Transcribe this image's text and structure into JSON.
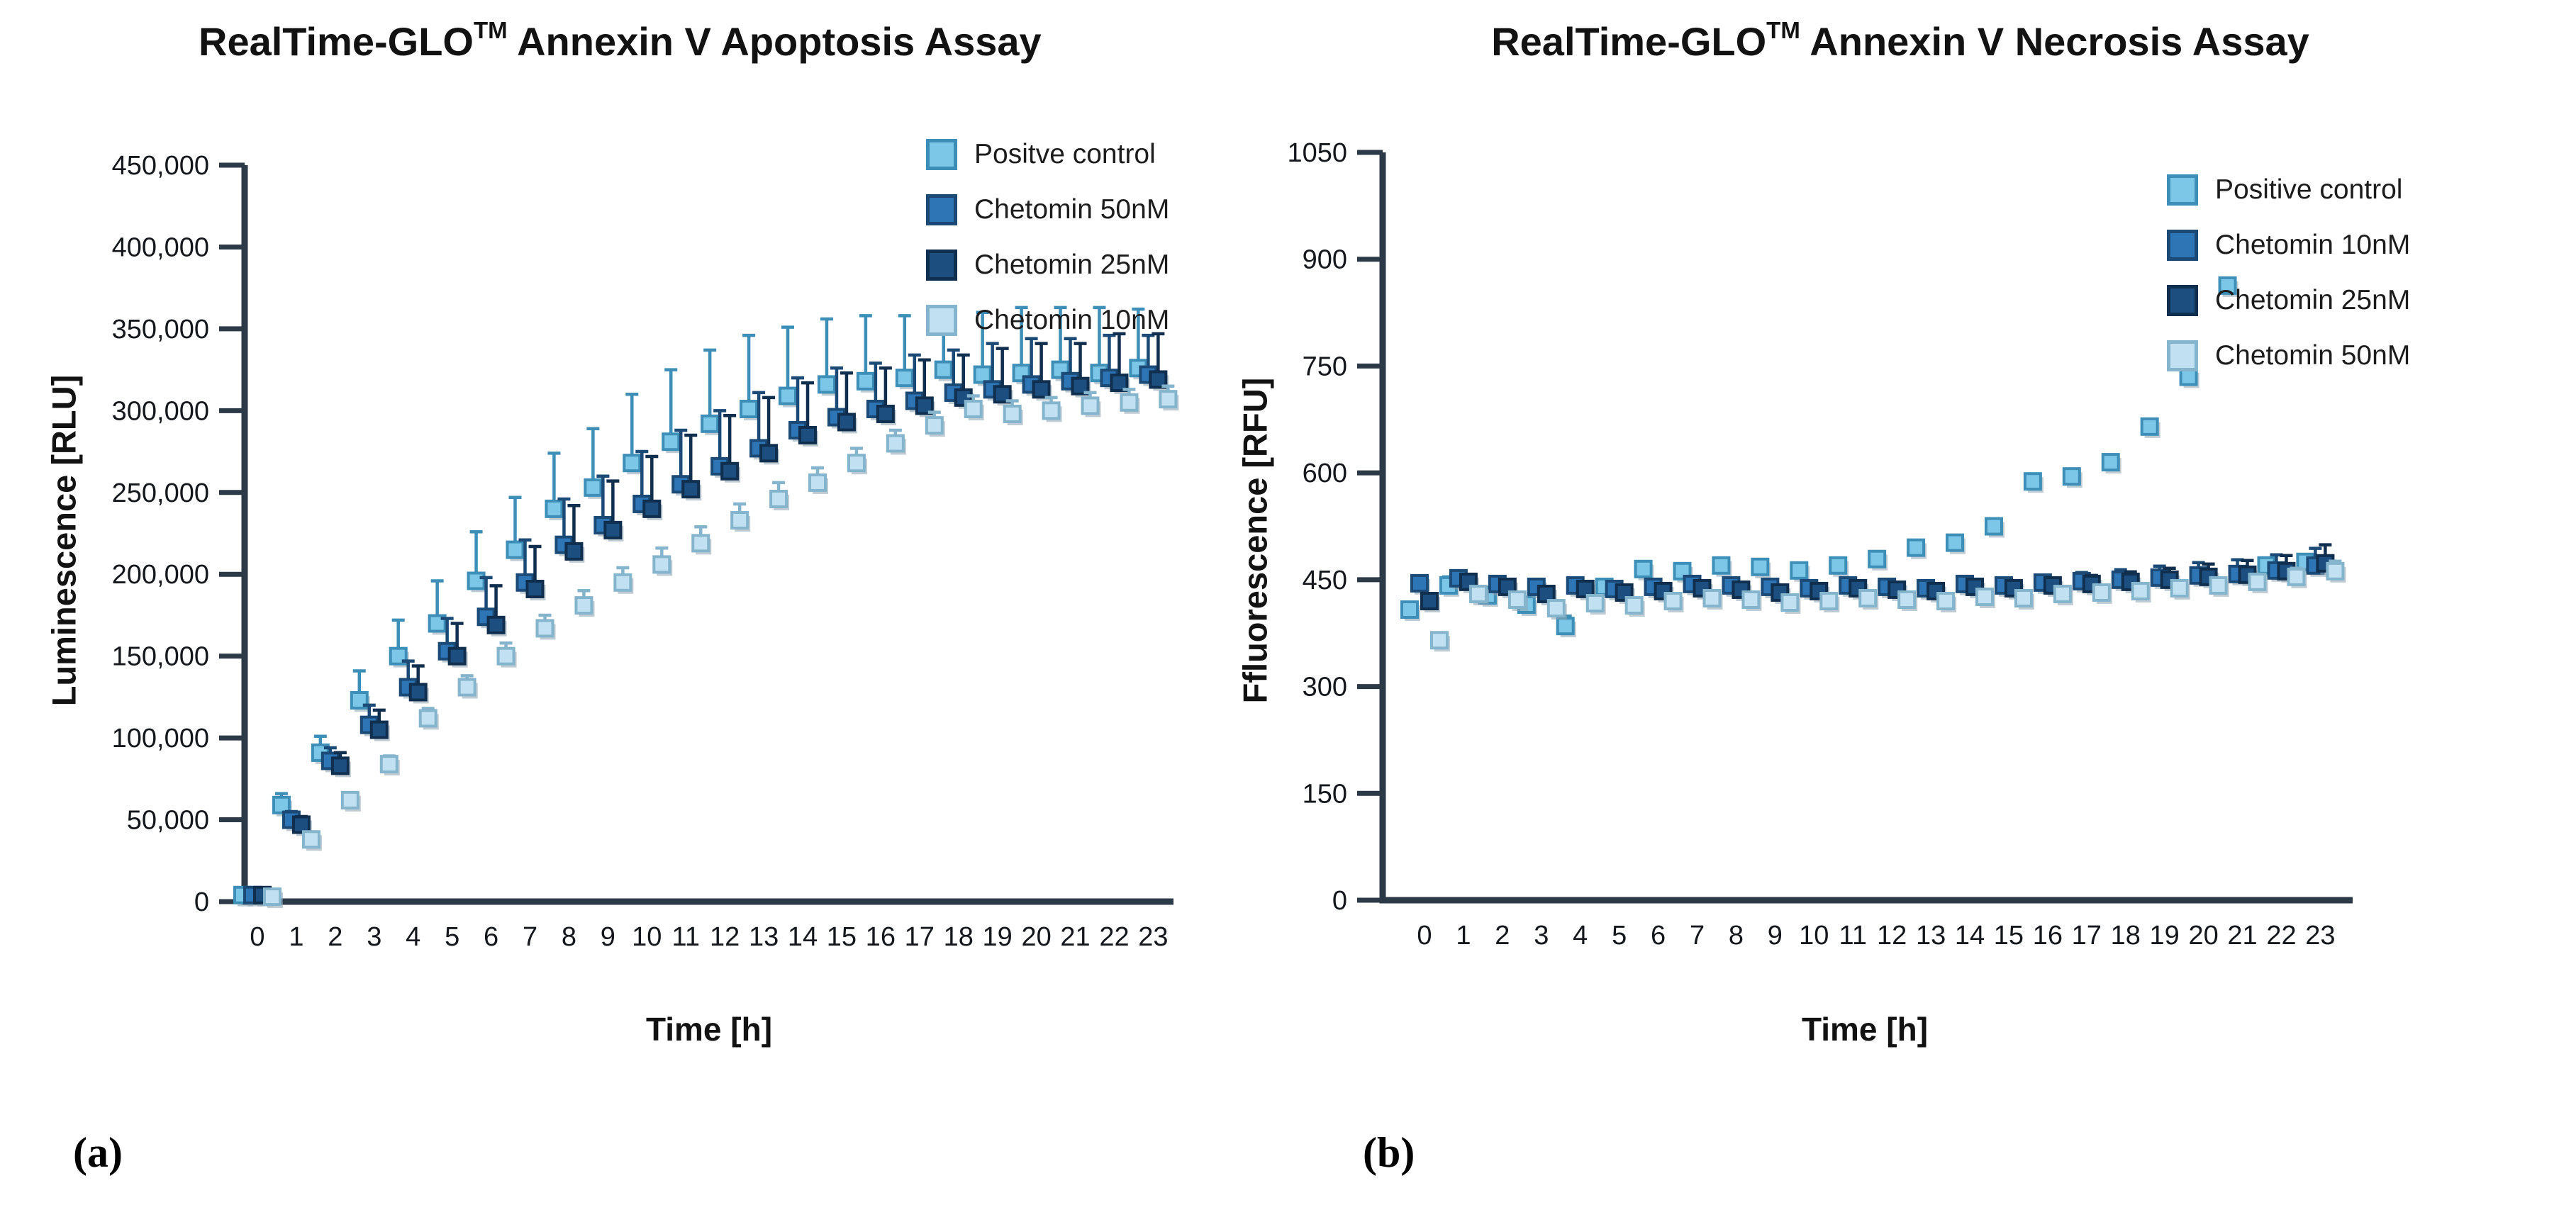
{
  "panels": [
    {
      "caption": "(a)",
      "title_pre": "RealTime-GLO",
      "title_tm": "TM",
      "title_post": " Annexin V Apoptosis Assay",
      "x_label": "Time [h]",
      "y_label": "Luminescence [RLU]"
    },
    {
      "caption": "(b)",
      "title_pre": "RealTime-GLO",
      "title_tm": "TM",
      "title_post": " Annexin V Necrosis Assay",
      "x_label": "Time [h]",
      "y_label": "Ffluorescence [RFU]"
    }
  ],
  "colors": {
    "axis": "#2c3a47",
    "text": "#1c1c1c",
    "positive_control": "#7cc7e8",
    "chetomin_mid_blue": "#2e75b6",
    "chetomin_navy": "#1c4e7f",
    "chetomin_pale": "#c1e1f2"
  },
  "chart_data": [
    {
      "id": "apoptosis",
      "type": "scatter",
      "title": "RealTime-GLO™ Annexin V Apoptosis Assay",
      "xlabel": "Time [h]",
      "ylabel": "Luminescence [RLU]",
      "x": [
        0,
        1,
        2,
        3,
        4,
        5,
        6,
        7,
        8,
        9,
        10,
        11,
        12,
        13,
        14,
        15,
        16,
        17,
        18,
        19,
        20,
        21,
        22,
        23
      ],
      "xtick_labels": [
        "0",
        "1",
        "2",
        "3",
        "4",
        "5",
        "6",
        "7",
        "8",
        "9",
        "10",
        "11",
        "12",
        "13",
        "14",
        "15",
        "16",
        "17",
        "18",
        "19",
        "20",
        "21",
        "22",
        "23"
      ],
      "ylim": [
        0,
        450000
      ],
      "yticks": [
        0,
        50000,
        100000,
        150000,
        200000,
        250000,
        300000,
        350000,
        400000,
        450000
      ],
      "ytick_labels": [
        "0",
        "50,000",
        "100,000",
        "150,000",
        "200,000",
        "250,000",
        "300,000",
        "350,000",
        "400,000",
        "450,000"
      ],
      "grid": false,
      "legend_position": "inside-top-right",
      "error_bars": "upper-only",
      "series": [
        {
          "name": "Positve control",
          "fill": "#7cc7e8",
          "edge": "#3d8fb8",
          "values": [
            4000,
            59000,
            91000,
            123000,
            150000,
            170000,
            196000,
            215000,
            240000,
            253000,
            268000,
            281000,
            292000,
            301000,
            309000,
            316000,
            318000,
            320000,
            325000,
            322000,
            323000,
            325000,
            323000,
            326000
          ],
          "err": [
            3000,
            7000,
            10000,
            18000,
            22000,
            26000,
            30000,
            32000,
            34000,
            36000,
            42000,
            44000,
            45000,
            45000,
            42000,
            40000,
            40000,
            38000,
            36000,
            38000,
            40000,
            38000,
            40000,
            36000
          ]
        },
        {
          "name": "Chetomin 50nM",
          "fill": "#2e75b6",
          "edge": "#1a4a75",
          "values": [
            4000,
            50000,
            86000,
            108000,
            131000,
            153000,
            174000,
            195000,
            218000,
            230000,
            243000,
            255000,
            266000,
            277000,
            288000,
            296000,
            301000,
            306000,
            311000,
            313000,
            316000,
            318000,
            320000,
            322000
          ],
          "err": [
            2000,
            5000,
            8000,
            12000,
            16000,
            20000,
            24000,
            26000,
            28000,
            30000,
            32000,
            33000,
            34000,
            34000,
            32000,
            30000,
            28000,
            28000,
            26000,
            28000,
            28000,
            26000,
            26000,
            24000
          ]
        },
        {
          "name": "Chetomin 25nM",
          "fill": "#1c4e7f",
          "edge": "#102e4e",
          "values": [
            4000,
            47000,
            83000,
            105000,
            128000,
            150000,
            169000,
            191000,
            214000,
            227000,
            240000,
            252000,
            263000,
            274000,
            285000,
            293000,
            298000,
            303000,
            308000,
            310000,
            313000,
            315000,
            317000,
            319000
          ],
          "err": [
            2000,
            5000,
            8000,
            12000,
            16000,
            20000,
            24000,
            26000,
            28000,
            30000,
            32000,
            33000,
            34000,
            34000,
            32000,
            30000,
            28000,
            28000,
            26000,
            28000,
            28000,
            26000,
            30000,
            28000
          ]
        },
        {
          "name": "Chetomin 10nM",
          "fill": "#c1e1f2",
          "edge": "#85b4cd",
          "values": [
            3000,
            38000,
            62000,
            84000,
            112000,
            131000,
            150000,
            167000,
            181000,
            195000,
            206000,
            219000,
            233000,
            246000,
            256000,
            268000,
            280000,
            291000,
            301000,
            298000,
            300000,
            303000,
            305000,
            307000
          ],
          "err": [
            1000,
            3000,
            4000,
            5000,
            6000,
            7000,
            8000,
            8000,
            9000,
            9000,
            10000,
            10000,
            10000,
            10000,
            9000,
            9000,
            8000,
            8000,
            8000,
            8000,
            8000,
            8000,
            8000,
            8000
          ]
        }
      ]
    },
    {
      "id": "necrosis",
      "type": "scatter",
      "title": "RealTime-GLO™ Annexin V Necrosis Assay",
      "xlabel": "Time [h]",
      "ylabel": "Ffluorescence [RFU]",
      "x": [
        0,
        1,
        2,
        3,
        4,
        5,
        6,
        7,
        8,
        9,
        10,
        11,
        12,
        13,
        14,
        15,
        16,
        17,
        18,
        19,
        20,
        21,
        22,
        23
      ],
      "xtick_labels": [
        "0",
        "1",
        "2",
        "3",
        "4",
        "5",
        "6",
        "7",
        "8",
        "9",
        "10",
        "11",
        "12",
        "13",
        "14",
        "15",
        "16",
        "17",
        "18",
        "19",
        "20",
        "21",
        "22",
        "23"
      ],
      "ylim": [
        0,
        1050
      ],
      "yticks": [
        0,
        150,
        300,
        450,
        600,
        750,
        900,
        1050
      ],
      "ytick_labels": [
        "0",
        "150",
        "300",
        "450",
        "600",
        "750",
        "900",
        "1050"
      ],
      "grid": false,
      "legend_position": "outside-top-right",
      "error_bars": "upper-only",
      "series": [
        {
          "name": "Positive control",
          "fill": "#7cc7e8",
          "edge": "#3d8fb8",
          "values": [
            408,
            442,
            428,
            415,
            385,
            440,
            465,
            462,
            470,
            468,
            463,
            470,
            479,
            495,
            502,
            525,
            588,
            595,
            615,
            665,
            735,
            863,
            470,
            475
          ],
          "err": [
            10,
            12,
            10,
            10,
            14,
            10,
            10,
            10,
            10,
            8,
            8,
            8,
            8,
            8,
            8,
            8,
            8,
            8,
            8,
            8,
            8,
            8,
            10,
            10
          ]
        },
        {
          "name": "Chetomin 10nM",
          "fill": "#2e75b6",
          "edge": "#1a4a75",
          "values": [
            445,
            452,
            444,
            440,
            442,
            437,
            440,
            444,
            442,
            440,
            438,
            442,
            440,
            438,
            444,
            442,
            446,
            448,
            450,
            453,
            456,
            458,
            463,
            470
          ],
          "err": [
            8,
            10,
            8,
            8,
            8,
            8,
            8,
            8,
            8,
            8,
            8,
            8,
            8,
            8,
            10,
            10,
            10,
            12,
            14,
            16,
            18,
            20,
            22,
            24
          ]
        },
        {
          "name": "Chetomin 25nM",
          "fill": "#1c4e7f",
          "edge": "#102e4e",
          "values": [
            420,
            447,
            440,
            430,
            437,
            432,
            434,
            438,
            436,
            432,
            434,
            438,
            436,
            434,
            440,
            438,
            442,
            444,
            447,
            450,
            454,
            457,
            462,
            473
          ],
          "err": [
            8,
            10,
            8,
            8,
            8,
            8,
            8,
            8,
            8,
            8,
            8,
            8,
            8,
            8,
            10,
            10,
            10,
            12,
            14,
            16,
            18,
            20,
            22,
            26
          ]
        },
        {
          "name": "Chetomin 50nM",
          "fill": "#c1e1f2",
          "edge": "#85b4cd",
          "values": [
            365,
            430,
            422,
            410,
            417,
            414,
            420,
            424,
            422,
            418,
            420,
            424,
            422,
            420,
            426,
            424,
            430,
            432,
            434,
            438,
            442,
            447,
            454,
            462
          ],
          "err": [
            6,
            8,
            6,
            6,
            10,
            6,
            6,
            6,
            6,
            6,
            6,
            6,
            6,
            6,
            8,
            8,
            8,
            8,
            8,
            10,
            10,
            10,
            12,
            14
          ]
        }
      ]
    }
  ]
}
